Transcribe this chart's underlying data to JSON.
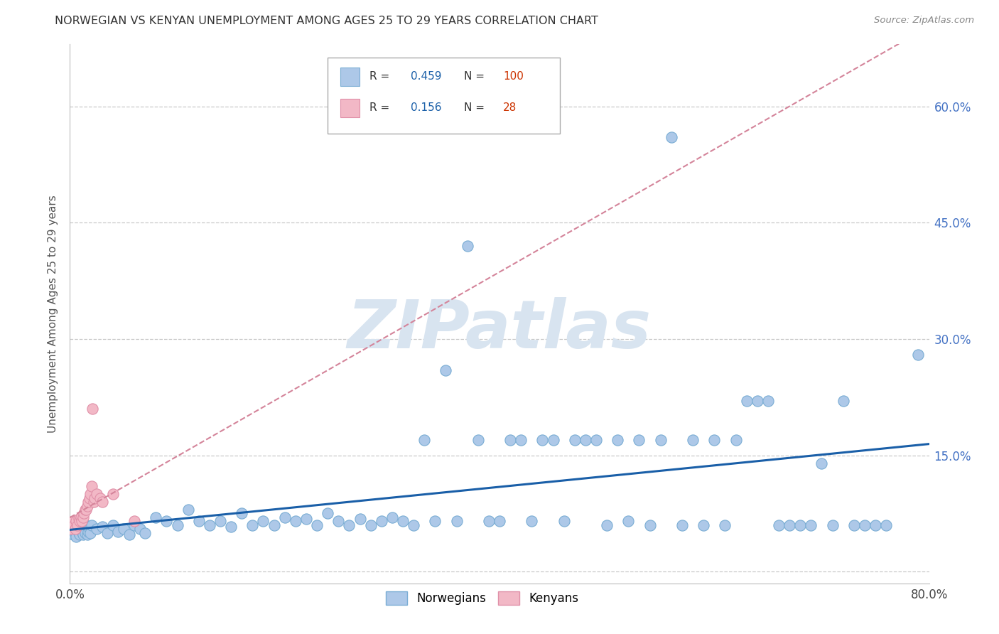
{
  "title": "NORWEGIAN VS KENYAN UNEMPLOYMENT AMONG AGES 25 TO 29 YEARS CORRELATION CHART",
  "source": "Source: ZipAtlas.com",
  "ylabel": "Unemployment Among Ages 25 to 29 years",
  "xlim": [
    0.0,
    0.8
  ],
  "ylim": [
    -0.015,
    0.68
  ],
  "x_ticks": [
    0.0,
    0.1,
    0.2,
    0.3,
    0.4,
    0.5,
    0.6,
    0.7,
    0.8
  ],
  "x_tick_labels": [
    "0.0%",
    "",
    "",
    "",
    "",
    "",
    "",
    "",
    "80.0%"
  ],
  "y_ticks": [
    0.0,
    0.15,
    0.3,
    0.45,
    0.6
  ],
  "y_tick_labels_right": [
    "",
    "15.0%",
    "30.0%",
    "45.0%",
    "60.0%"
  ],
  "norwegian_color": "#adc8e8",
  "norwegian_edge_color": "#7aadd4",
  "kenyan_color": "#f2b8c6",
  "kenyan_edge_color": "#e090a8",
  "norwegian_line_color": "#1a5fa8",
  "kenyan_line_color": "#d4849a",
  "watermark_color": "#d8e4f0",
  "watermark_text": "ZIPatlas",
  "r_norwegian": 0.459,
  "n_norwegian": 100,
  "r_kenyan": 0.156,
  "n_kenyan": 28,
  "nor_x": [
    0.001,
    0.002,
    0.003,
    0.004,
    0.005,
    0.006,
    0.007,
    0.008,
    0.009,
    0.01,
    0.011,
    0.012,
    0.013,
    0.014,
    0.015,
    0.016,
    0.017,
    0.018,
    0.019,
    0.02,
    0.025,
    0.03,
    0.035,
    0.04,
    0.045,
    0.05,
    0.055,
    0.06,
    0.065,
    0.07,
    0.08,
    0.09,
    0.1,
    0.11,
    0.12,
    0.13,
    0.14,
    0.15,
    0.16,
    0.17,
    0.18,
    0.19,
    0.2,
    0.21,
    0.22,
    0.23,
    0.24,
    0.25,
    0.26,
    0.27,
    0.28,
    0.29,
    0.3,
    0.31,
    0.32,
    0.33,
    0.34,
    0.35,
    0.36,
    0.37,
    0.38,
    0.39,
    0.4,
    0.41,
    0.42,
    0.43,
    0.44,
    0.45,
    0.46,
    0.47,
    0.48,
    0.49,
    0.5,
    0.51,
    0.52,
    0.53,
    0.54,
    0.55,
    0.56,
    0.57,
    0.58,
    0.59,
    0.6,
    0.61,
    0.62,
    0.63,
    0.64,
    0.65,
    0.66,
    0.67,
    0.68,
    0.69,
    0.7,
    0.71,
    0.72,
    0.73,
    0.74,
    0.75,
    0.76,
    0.79
  ],
  "nor_y": [
    0.05,
    0.055,
    0.048,
    0.052,
    0.06,
    0.045,
    0.055,
    0.05,
    0.048,
    0.056,
    0.052,
    0.048,
    0.055,
    0.05,
    0.06,
    0.048,
    0.052,
    0.055,
    0.05,
    0.06,
    0.055,
    0.058,
    0.05,
    0.06,
    0.052,
    0.055,
    0.048,
    0.06,
    0.055,
    0.05,
    0.07,
    0.065,
    0.06,
    0.08,
    0.065,
    0.06,
    0.065,
    0.058,
    0.075,
    0.06,
    0.065,
    0.06,
    0.07,
    0.065,
    0.068,
    0.06,
    0.075,
    0.065,
    0.06,
    0.068,
    0.06,
    0.065,
    0.07,
    0.065,
    0.06,
    0.17,
    0.065,
    0.26,
    0.065,
    0.42,
    0.17,
    0.065,
    0.065,
    0.17,
    0.17,
    0.065,
    0.17,
    0.17,
    0.065,
    0.17,
    0.17,
    0.17,
    0.06,
    0.17,
    0.065,
    0.17,
    0.06,
    0.17,
    0.56,
    0.06,
    0.17,
    0.06,
    0.17,
    0.06,
    0.17,
    0.22,
    0.22,
    0.22,
    0.06,
    0.06,
    0.06,
    0.06,
    0.14,
    0.06,
    0.22,
    0.06,
    0.06,
    0.06,
    0.06,
    0.28
  ],
  "ken_x": [
    0.001,
    0.002,
    0.003,
    0.004,
    0.005,
    0.006,
    0.007,
    0.008,
    0.009,
    0.01,
    0.011,
    0.012,
    0.013,
    0.014,
    0.015,
    0.016,
    0.017,
    0.018,
    0.019,
    0.02,
    0.021,
    0.022,
    0.023,
    0.025,
    0.028,
    0.03,
    0.04,
    0.06
  ],
  "ken_y": [
    0.055,
    0.06,
    0.065,
    0.06,
    0.055,
    0.065,
    0.06,
    0.068,
    0.065,
    0.07,
    0.065,
    0.07,
    0.075,
    0.08,
    0.08,
    0.085,
    0.09,
    0.095,
    0.1,
    0.11,
    0.21,
    0.09,
    0.095,
    0.1,
    0.095,
    0.09,
    0.1,
    0.065
  ]
}
